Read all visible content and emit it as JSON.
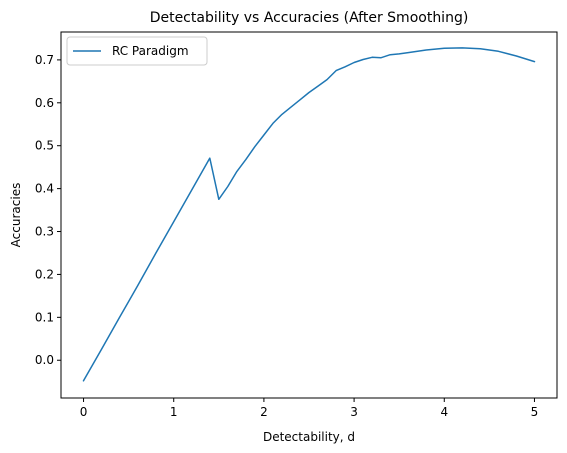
{
  "chart_data": {
    "type": "line",
    "title": "Detectability vs Accuracies (After Smoothing)",
    "xlabel": "Detectability, d",
    "ylabel": "Accuracies",
    "xlim": [
      -0.25,
      5.25
    ],
    "ylim": [
      -0.088,
      0.765
    ],
    "xticks": [
      0,
      1,
      2,
      3,
      4,
      5
    ],
    "xtick_labels": [
      "0",
      "1",
      "2",
      "3",
      "4",
      "5"
    ],
    "yticks": [
      0.0,
      0.1,
      0.2,
      0.3,
      0.4,
      0.5,
      0.6,
      0.7
    ],
    "ytick_labels": [
      "0.0",
      "0.1",
      "0.2",
      "0.3",
      "0.4",
      "0.5",
      "0.6",
      "0.7"
    ],
    "grid": false,
    "legend_position": "top-left",
    "colors": {
      "series": "#1f77b4",
      "axes": "#000000",
      "legend_border": "#cccccc"
    },
    "series": [
      {
        "name": "RC Paradigm",
        "x": [
          0.0,
          0.2,
          0.4,
          0.6,
          0.8,
          1.0,
          1.2,
          1.4,
          1.5,
          1.6,
          1.7,
          1.8,
          1.9,
          2.0,
          2.1,
          2.2,
          2.3,
          2.4,
          2.5,
          2.6,
          2.7,
          2.8,
          2.9,
          3.0,
          3.1,
          3.2,
          3.3,
          3.4,
          3.5,
          3.6,
          3.8,
          4.0,
          4.2,
          4.4,
          4.6,
          4.8,
          5.0
        ],
        "y": [
          -0.048,
          0.026,
          0.1,
          0.174,
          0.249,
          0.323,
          0.397,
          0.471,
          0.375,
          0.405,
          0.44,
          0.468,
          0.498,
          0.525,
          0.552,
          0.573,
          0.59,
          0.607,
          0.624,
          0.639,
          0.654,
          0.675,
          0.684,
          0.694,
          0.701,
          0.706,
          0.705,
          0.712,
          0.714,
          0.717,
          0.723,
          0.727,
          0.728,
          0.726,
          0.72,
          0.709,
          0.696
        ]
      }
    ]
  }
}
